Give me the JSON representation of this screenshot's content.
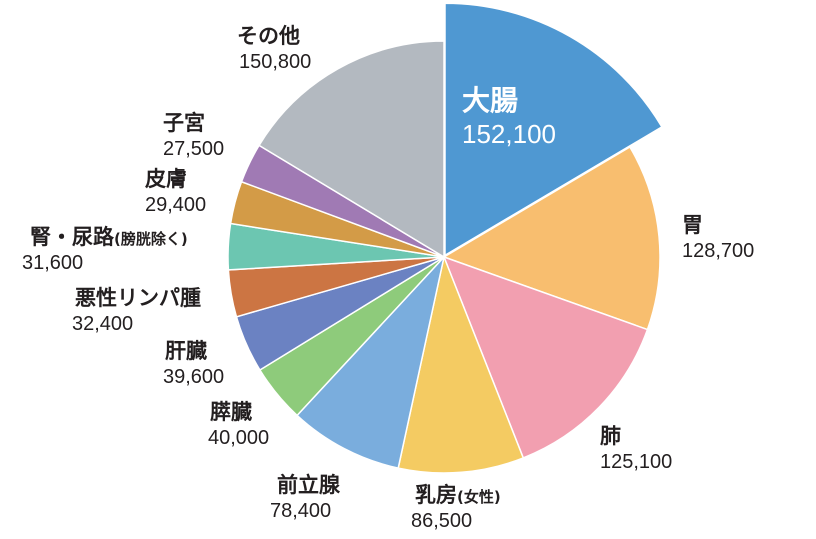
{
  "chart_data": {
    "type": "pie",
    "title": "",
    "slices": [
      {
        "name": "大腸",
        "value": 152100,
        "value_label": "152,100",
        "color": "#4f98d2",
        "exploded": true
      },
      {
        "name": "胃",
        "value": 128700,
        "value_label": "128,700",
        "color": "#f8be6f"
      },
      {
        "name": "肺",
        "value": 125100,
        "value_label": "125,100",
        "color": "#f29fb0"
      },
      {
        "name": "乳房",
        "name_sub": "(女性)",
        "value": 86500,
        "value_label": "86,500",
        "color": "#f4cb62"
      },
      {
        "name": "前立腺",
        "value": 78400,
        "value_label": "78,400",
        "color": "#7aaddd"
      },
      {
        "name": "膵臓",
        "value": 40000,
        "value_label": "40,000",
        "color": "#8ecb7b"
      },
      {
        "name": "肝臓",
        "value": 39600,
        "value_label": "39,600",
        "color": "#6b82c2"
      },
      {
        "name": "悪性リンパ腫",
        "value": 32400,
        "value_label": "32,400",
        "color": "#cc7543"
      },
      {
        "name": "腎・尿路",
        "name_sub": "(膀胱除く)",
        "value": 31600,
        "value_label": "31,600",
        "color": "#6cc6b1"
      },
      {
        "name": "皮膚",
        "value": 29400,
        "value_label": "29,400",
        "color": "#d39b47"
      },
      {
        "name": "子宮",
        "value": 27500,
        "value_label": "27,500",
        "color": "#a07ab4"
      },
      {
        "name": "その他",
        "value": 150800,
        "value_label": "150,800",
        "color": "#b3b9c0"
      }
    ]
  }
}
